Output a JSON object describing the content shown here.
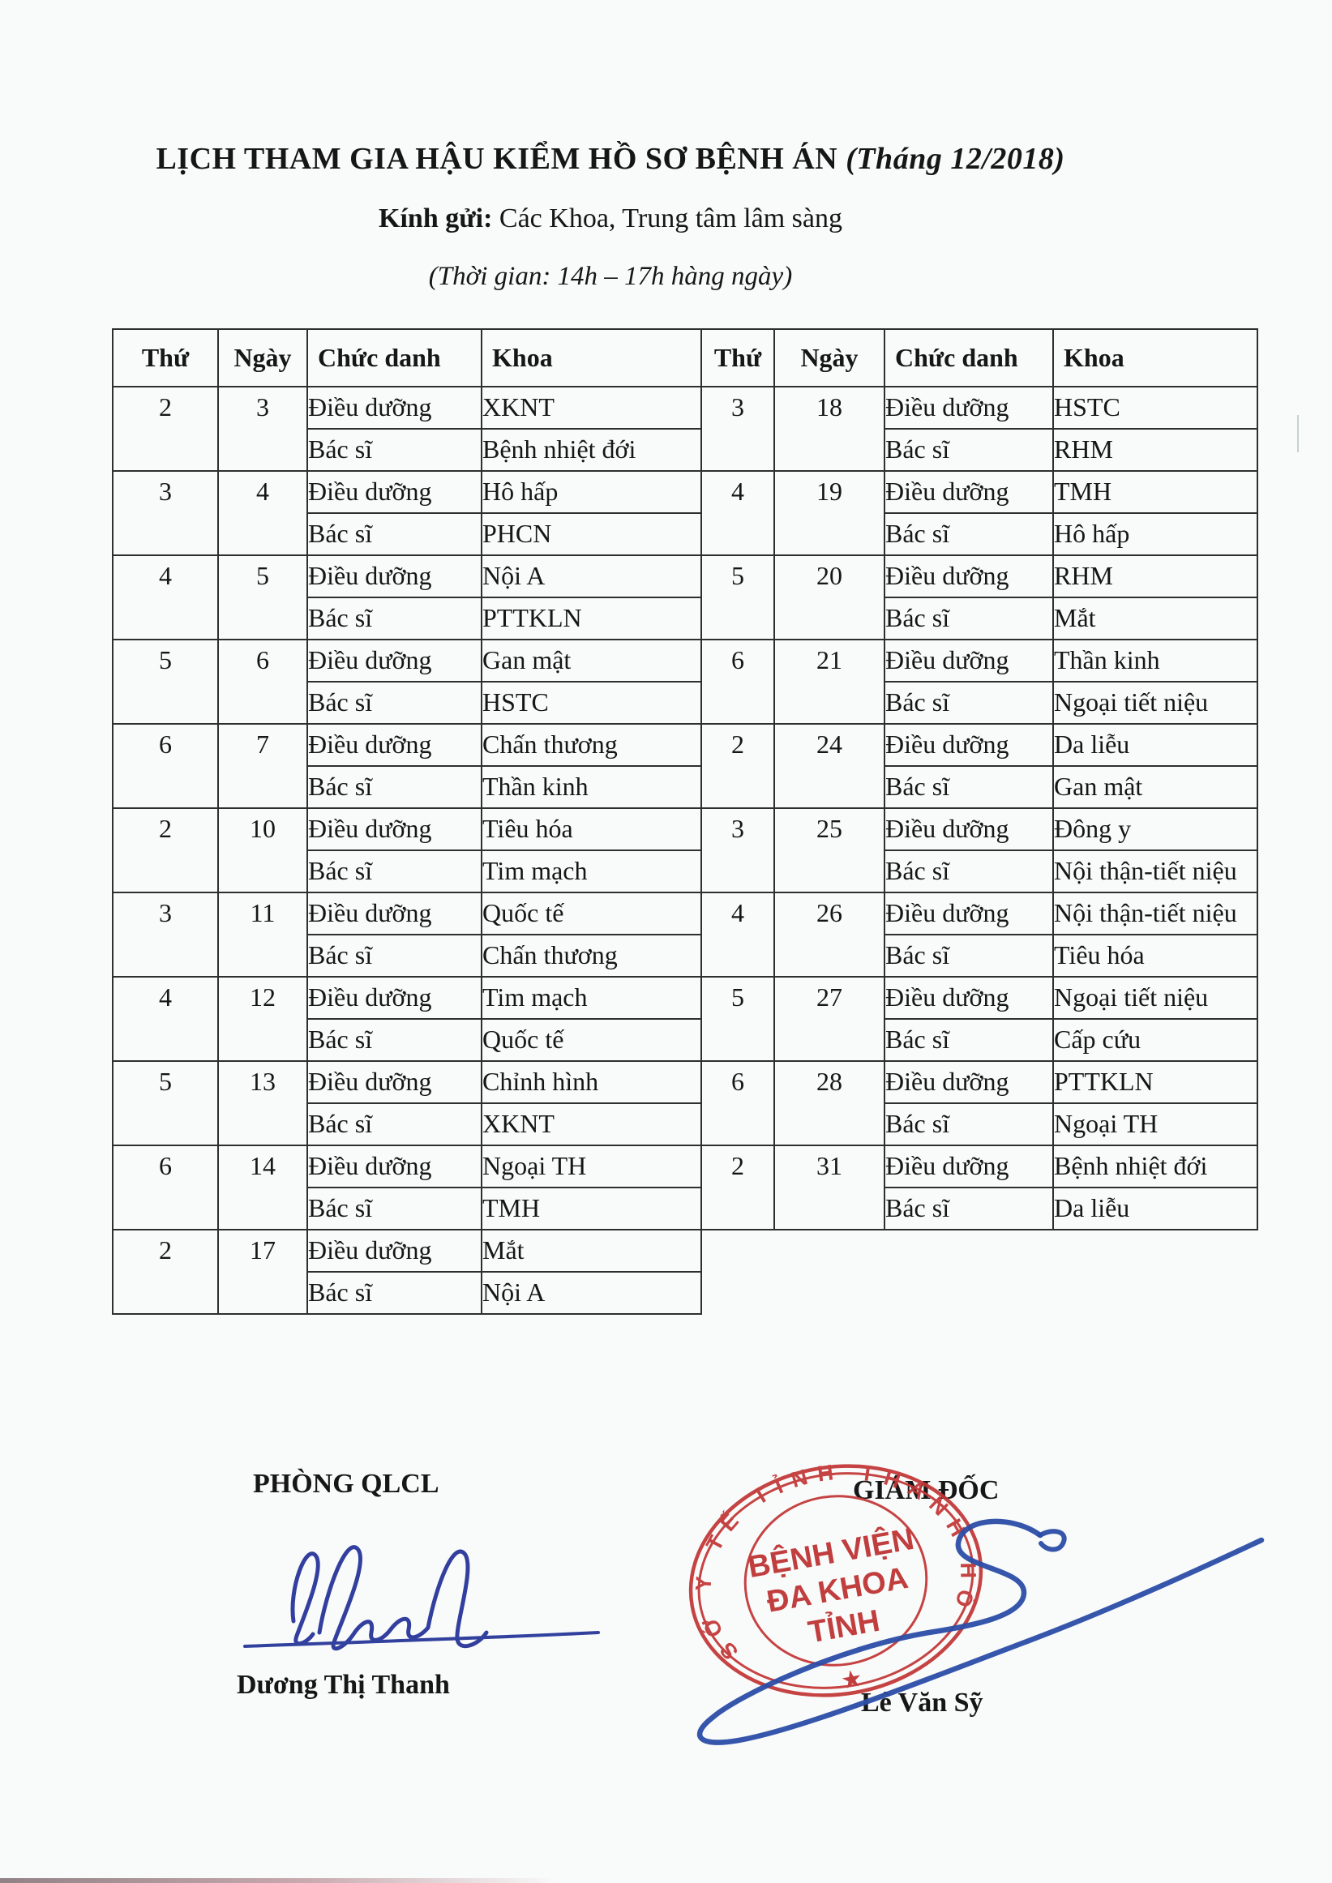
{
  "page": {
    "title": "LỊCH THAM GIA HẬU KIỂM HỒ SƠ BỆNH ÁN",
    "title_suffix": " (Tháng 12/2018)",
    "greeting_label": "Kính gửi:",
    "greeting_text": " Các Khoa, Trung tâm lâm sàng",
    "time_note": "(Thời gian: 14h – 17h hàng ngày)"
  },
  "table": {
    "headers": [
      "Thứ",
      "Ngày",
      "Chức danh",
      "Khoa",
      "Thứ",
      "Ngày",
      "Chức danh",
      "Khoa"
    ],
    "role_nurse": "Điều dưỡng",
    "role_doctor": "Bác sĩ",
    "left_groups": [
      {
        "thu": "2",
        "ngay": "3",
        "nurse_khoa": "XKNT",
        "doctor_khoa": "Bệnh nhiệt đới"
      },
      {
        "thu": "3",
        "ngay": "4",
        "nurse_khoa": "Hô hấp",
        "doctor_khoa": "PHCN"
      },
      {
        "thu": "4",
        "ngay": "5",
        "nurse_khoa": "Nội A",
        "doctor_khoa": "PTTKLN"
      },
      {
        "thu": "5",
        "ngay": "6",
        "nurse_khoa": "Gan mật",
        "doctor_khoa": "HSTC"
      },
      {
        "thu": "6",
        "ngay": "7",
        "nurse_khoa": "Chấn thương",
        "doctor_khoa": "Thần kinh"
      },
      {
        "thu": "2",
        "ngay": "10",
        "nurse_khoa": "Tiêu hóa",
        "doctor_khoa": "Tim mạch"
      },
      {
        "thu": "3",
        "ngay": "11",
        "nurse_khoa": "Quốc tế",
        "doctor_khoa": "Chấn thương"
      },
      {
        "thu": "4",
        "ngay": "12",
        "nurse_khoa": "Tim mạch",
        "doctor_khoa": "Quốc tế"
      },
      {
        "thu": "5",
        "ngay": "13",
        "nurse_khoa": "Chỉnh hình",
        "doctor_khoa": "XKNT"
      },
      {
        "thu": "6",
        "ngay": "14",
        "nurse_khoa": "Ngoại TH",
        "doctor_khoa": "TMH"
      },
      {
        "thu": "2",
        "ngay": "17",
        "nurse_khoa": "Mắt",
        "doctor_khoa": "Nội A"
      }
    ],
    "right_groups": [
      {
        "thu": "3",
        "ngay": "18",
        "nurse_khoa": "HSTC",
        "doctor_khoa": "RHM"
      },
      {
        "thu": "4",
        "ngay": "19",
        "nurse_khoa": "TMH",
        "doctor_khoa": "Hô hấp"
      },
      {
        "thu": "5",
        "ngay": "20",
        "nurse_khoa": "RHM",
        "doctor_khoa": "Mắt"
      },
      {
        "thu": "6",
        "ngay": "21",
        "nurse_khoa": "Thần kinh",
        "doctor_khoa": "Ngoại tiết niệu"
      },
      {
        "thu": "2",
        "ngay": "24",
        "nurse_khoa": "Da liễu",
        "doctor_khoa": "Gan mật"
      },
      {
        "thu": "3",
        "ngay": "25",
        "nurse_khoa": "Đông y",
        "doctor_khoa": "Nội thận-tiết niệu"
      },
      {
        "thu": "4",
        "ngay": "26",
        "nurse_khoa": "Nội thận-tiết niệu",
        "doctor_khoa": "Tiêu hóa"
      },
      {
        "thu": "5",
        "ngay": "27",
        "nurse_khoa": "Ngoại tiết niệu",
        "doctor_khoa": "Cấp cứu"
      },
      {
        "thu": "6",
        "ngay": "28",
        "nurse_khoa": "PTTKLN",
        "doctor_khoa": "Ngoại TH"
      },
      {
        "thu": "2",
        "ngay": "31",
        "nurse_khoa": "Bệnh nhiệt đới",
        "doctor_khoa": "Da liễu"
      }
    ]
  },
  "signatures": {
    "left_title": "PHÒNG QLCL",
    "left_name": "Dương Thị Thanh",
    "right_title": "GIÁM ĐỐC",
    "right_name": "Lê Văn Sỹ"
  },
  "stamp": {
    "ring_text": "SỞ Y TẾ TỈNH THANH HÓA",
    "center_line1": "BỆNH VIỆN",
    "center_line2": "ĐA KHOA",
    "center_line3": "TỈNH",
    "star": "★",
    "red": "#c23636",
    "ink_blue": "#2b4da8"
  }
}
